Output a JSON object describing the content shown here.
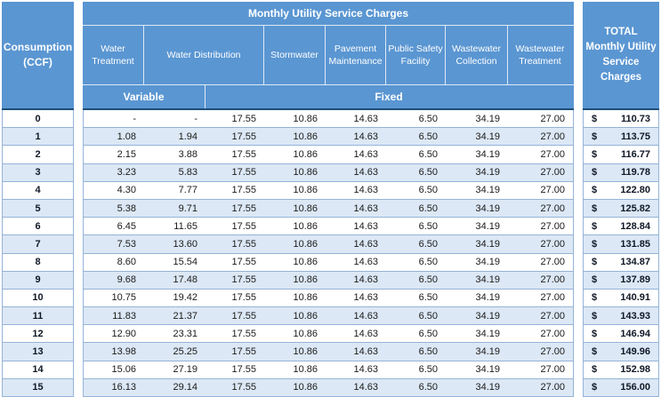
{
  "chart_data": {
    "type": "table",
    "title": "Monthly Utility Service Charges",
    "row_header_label": "Consumption (CCF)",
    "total_column_label": "TOTAL Monthly Utility Service Charges",
    "columns": [
      "Water Treatment",
      "Water Distribution",
      "Stormwater",
      "Pavement Maintenance",
      "Public Safety Facility",
      "Wastewater Collection",
      "Wastewater Treatment"
    ],
    "sub_headers": [
      {
        "label": "Variable",
        "span": 2
      },
      {
        "label": "Fixed",
        "span": 6
      }
    ],
    "data_columns": [
      "Water Treatment (Variable)",
      "Water Distribution (Variable)",
      "Water Distribution (Fixed)",
      "Stormwater (Fixed)",
      "Pavement Maintenance (Fixed)",
      "Public Safety Facility (Fixed)",
      "Wastewater Collection (Fixed)",
      "Wastewater Treatment (Fixed)"
    ],
    "currency_symbol": "$",
    "rows": [
      {
        "consumption": "0",
        "charges": [
          "-",
          "-",
          "17.55",
          "10.86",
          "14.63",
          "6.50",
          "34.19",
          "27.00"
        ],
        "total": "110.73"
      },
      {
        "consumption": "1",
        "charges": [
          "1.08",
          "1.94",
          "17.55",
          "10.86",
          "14.63",
          "6.50",
          "34.19",
          "27.00"
        ],
        "total": "113.75"
      },
      {
        "consumption": "2",
        "charges": [
          "2.15",
          "3.88",
          "17.55",
          "10.86",
          "14.63",
          "6.50",
          "34.19",
          "27.00"
        ],
        "total": "116.77"
      },
      {
        "consumption": "3",
        "charges": [
          "3.23",
          "5.83",
          "17.55",
          "10.86",
          "14.63",
          "6.50",
          "34.19",
          "27.00"
        ],
        "total": "119.78"
      },
      {
        "consumption": "4",
        "charges": [
          "4.30",
          "7.77",
          "17.55",
          "10.86",
          "14.63",
          "6.50",
          "34.19",
          "27.00"
        ],
        "total": "122.80"
      },
      {
        "consumption": "5",
        "charges": [
          "5.38",
          "9.71",
          "17.55",
          "10.86",
          "14.63",
          "6.50",
          "34.19",
          "27.00"
        ],
        "total": "125.82"
      },
      {
        "consumption": "6",
        "charges": [
          "6.45",
          "11.65",
          "17.55",
          "10.86",
          "14.63",
          "6.50",
          "34.19",
          "27.00"
        ],
        "total": "128.84"
      },
      {
        "consumption": "7",
        "charges": [
          "7.53",
          "13.60",
          "17.55",
          "10.86",
          "14.63",
          "6.50",
          "34.19",
          "27.00"
        ],
        "total": "131.85"
      },
      {
        "consumption": "8",
        "charges": [
          "8.60",
          "15.54",
          "17.55",
          "10.86",
          "14.63",
          "6.50",
          "34.19",
          "27.00"
        ],
        "total": "134.87"
      },
      {
        "consumption": "9",
        "charges": [
          "9.68",
          "17.48",
          "17.55",
          "10.86",
          "14.63",
          "6.50",
          "34.19",
          "27.00"
        ],
        "total": "137.89"
      },
      {
        "consumption": "10",
        "charges": [
          "10.75",
          "19.42",
          "17.55",
          "10.86",
          "14.63",
          "6.50",
          "34.19",
          "27.00"
        ],
        "total": "140.91"
      },
      {
        "consumption": "11",
        "charges": [
          "11.83",
          "21.37",
          "17.55",
          "10.86",
          "14.63",
          "6.50",
          "34.19",
          "27.00"
        ],
        "total": "143.93"
      },
      {
        "consumption": "12",
        "charges": [
          "12.90",
          "23.31",
          "17.55",
          "10.86",
          "14.63",
          "6.50",
          "34.19",
          "27.00"
        ],
        "total": "146.94"
      },
      {
        "consumption": "13",
        "charges": [
          "13.98",
          "25.25",
          "17.55",
          "10.86",
          "14.63",
          "6.50",
          "34.19",
          "27.00"
        ],
        "total": "149.96"
      },
      {
        "consumption": "14",
        "charges": [
          "15.06",
          "27.19",
          "17.55",
          "10.86",
          "14.63",
          "6.50",
          "34.19",
          "27.00"
        ],
        "total": "152.98"
      },
      {
        "consumption": "15",
        "charges": [
          "16.13",
          "29.14",
          "17.55",
          "10.86",
          "14.63",
          "6.50",
          "34.19",
          "27.00"
        ],
        "total": "156.00"
      }
    ],
    "layout": {
      "banded_rows": true,
      "colors": {
        "header_blue": "#5A96D2",
        "band_blue": "#DCE8F5",
        "border_blue": "#95B3D7",
        "divider_navy": "#1F4E79",
        "header_text": "#FFFFFF",
        "value_text": "#1A1A1A"
      }
    }
  }
}
